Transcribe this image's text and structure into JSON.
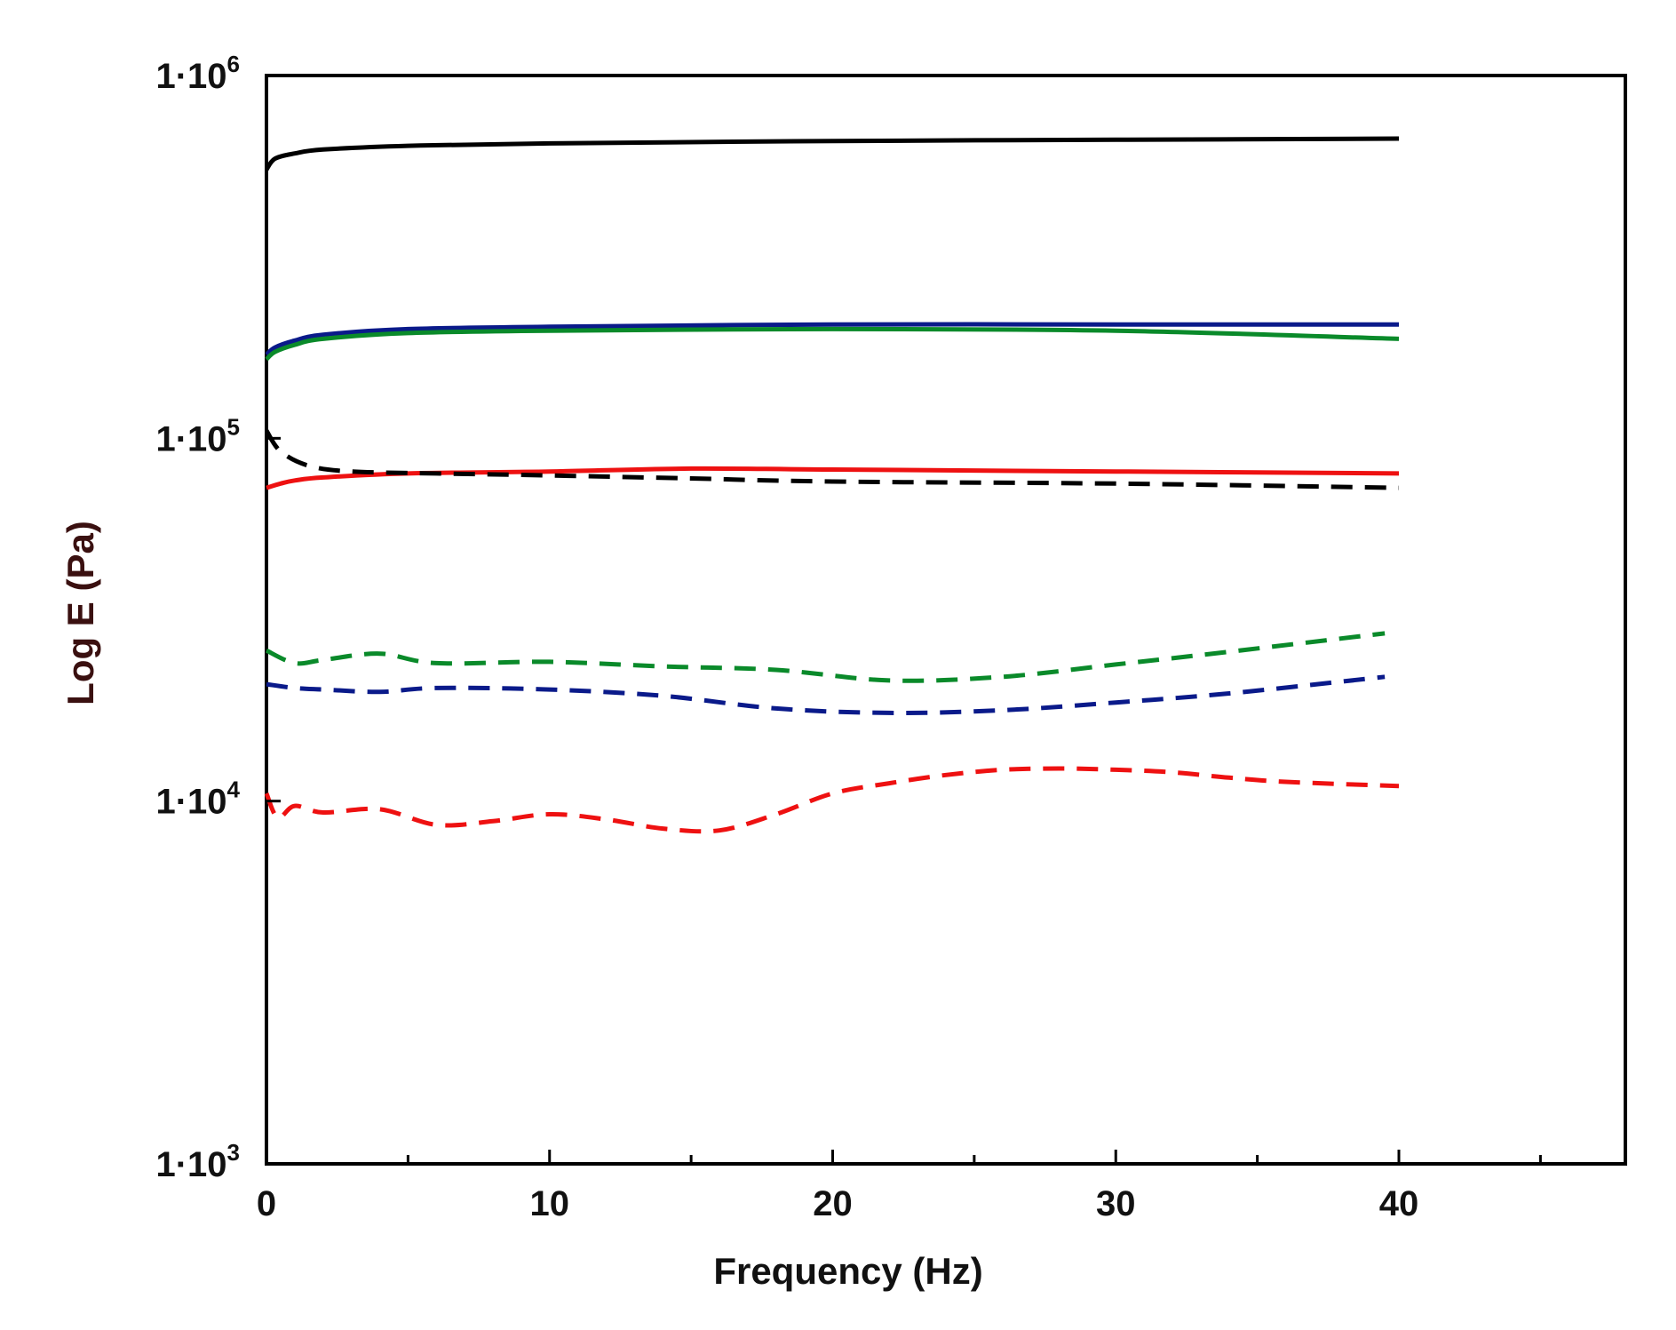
{
  "chart_data": {
    "type": "line",
    "title": "",
    "xlabel": "Frequency (Hz)",
    "ylabel": "Log E (Pa)",
    "xlim": [
      0,
      48
    ],
    "ylim": [
      1000,
      1000000
    ],
    "yscale": "log",
    "xticks": [
      0,
      10,
      20,
      30,
      40
    ],
    "xtick_labels": [
      "0",
      "10",
      "20",
      "30",
      "40"
    ],
    "yticks": [
      {
        "value": 1000,
        "mantissa": "1·10",
        "exponent": "3"
      },
      {
        "value": 10000,
        "mantissa": "1·10",
        "exponent": "4"
      },
      {
        "value": 100000,
        "mantissa": "1·10",
        "exponent": "5"
      },
      {
        "value": 1000000,
        "mantissa": "1·10",
        "exponent": "6"
      }
    ],
    "grid": false,
    "series": [
      {
        "name": "black solid",
        "color": "#000000",
        "style": "solid",
        "x": [
          0,
          0.3,
          1,
          2,
          5,
          10,
          20,
          30,
          40
        ],
        "y": [
          550000,
          590000,
          610000,
          625000,
          640000,
          650000,
          660000,
          665000,
          670000
        ]
      },
      {
        "name": "blue solid",
        "color": "#0a1a8a",
        "style": "solid",
        "x": [
          0,
          0.3,
          1,
          2,
          5,
          10,
          20,
          30,
          40
        ],
        "y": [
          170000,
          178000,
          186000,
          193000,
          200000,
          203000,
          206000,
          206000,
          206000
        ]
      },
      {
        "name": "green solid",
        "color": "#0a8a2a",
        "style": "solid",
        "x": [
          0,
          0.3,
          1,
          2,
          5,
          10,
          20,
          30,
          40
        ],
        "y": [
          165000,
          173000,
          181000,
          188000,
          195000,
          198000,
          200000,
          198000,
          188000
        ]
      },
      {
        "name": "red solid",
        "color": "#ee1111",
        "style": "solid",
        "x": [
          0,
          0.5,
          1,
          2,
          5,
          10,
          15,
          20,
          30,
          40
        ],
        "y": [
          73000,
          75000,
          76500,
          78000,
          80000,
          81000,
          82500,
          82000,
          81000,
          80000
        ]
      },
      {
        "name": "black dashed",
        "color": "#000000",
        "style": "dashed",
        "x": [
          0,
          0.5,
          1.5,
          3,
          6,
          10,
          15,
          20,
          30,
          40
        ],
        "y": [
          105000,
          92000,
          84000,
          81000,
          80000,
          79000,
          77500,
          76000,
          75000,
          73000
        ]
      },
      {
        "name": "green dashed",
        "color": "#0a8a2a",
        "style": "dashed",
        "x": [
          0,
          1,
          2,
          4,
          6,
          10,
          14,
          18,
          22,
          26,
          30,
          34,
          39.5
        ],
        "y": [
          26000,
          24000,
          24500,
          25500,
          24000,
          24200,
          23500,
          23000,
          21500,
          22000,
          23800,
          25800,
          29000
        ]
      },
      {
        "name": "blue dashed",
        "color": "#0a1a8a",
        "style": "dashed",
        "x": [
          0,
          1,
          2,
          4,
          6,
          10,
          14,
          18,
          22,
          26,
          30,
          34,
          39.5
        ],
        "y": [
          21000,
          20500,
          20300,
          20000,
          20500,
          20300,
          19500,
          18000,
          17500,
          17800,
          18700,
          19800,
          22000
        ]
      },
      {
        "name": "red dashed",
        "color": "#ee1111",
        "style": "dashed",
        "x": [
          0,
          0.4,
          1,
          2,
          4,
          6,
          8,
          10,
          12,
          14,
          16,
          18,
          20,
          22,
          24,
          26,
          28,
          30,
          32,
          34,
          36,
          40
        ],
        "y": [
          10500,
          9000,
          9700,
          9300,
          9500,
          8600,
          8800,
          9200,
          8900,
          8400,
          8300,
          9200,
          10500,
          11200,
          11800,
          12200,
          12300,
          12200,
          12000,
          11600,
          11300,
          11000
        ]
      }
    ]
  }
}
